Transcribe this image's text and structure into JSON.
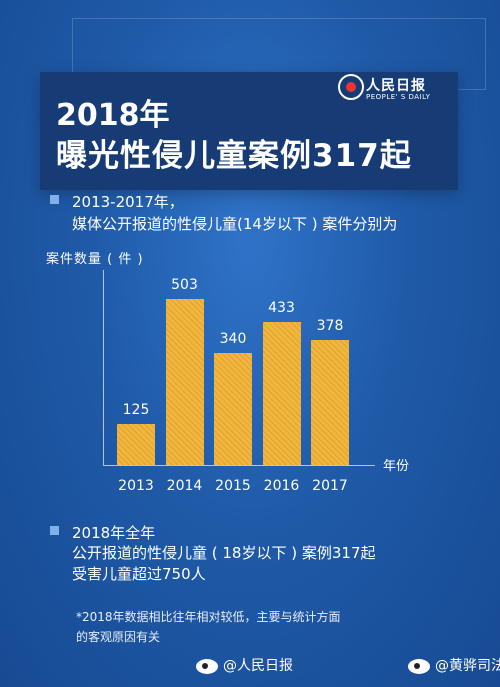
{
  "header": {
    "logo_text": "人民日报",
    "logo_sub": "PEOPLE' S DAILY",
    "title_line1": "2018年",
    "title_line2": "曝光性侵儿童案例317起"
  },
  "section1": {
    "line1": "2013-2017年，",
    "line2": "媒体公开报道的性侵儿童(14岁以下 ) 案件分别为"
  },
  "chart_data": {
    "type": "bar",
    "title": "",
    "ylabel": "案件数量 ( 件 )",
    "xlabel": "年份",
    "categories": [
      "2013",
      "2014",
      "2015",
      "2016",
      "2017"
    ],
    "values": [
      125,
      503,
      340,
      433,
      378
    ],
    "value_labels": [
      "125",
      "503",
      "340",
      "433",
      "378"
    ],
    "ylim": [
      0,
      560
    ],
    "grid": false,
    "bar_color": "#f2b63d"
  },
  "section2": {
    "line1": "2018年全年",
    "line2": "公开报道的性侵儿童 ( 18岁以下 ) 案例317起",
    "line3": "受害儿童超过750人"
  },
  "note": {
    "line1": "*2018年数据相比往年相对较低，主要与统计方面",
    "line2": "的客观原因有关"
  },
  "footer": {
    "left": "@人民日报",
    "right": "@黄骅司法"
  }
}
